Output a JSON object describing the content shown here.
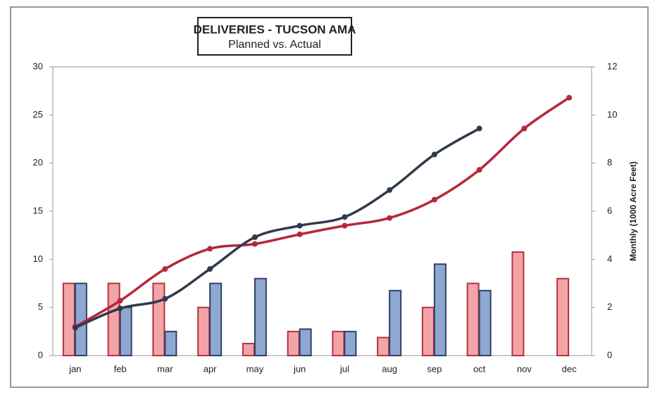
{
  "chart_data": {
    "type": "bar-line",
    "title": "DELIVERIES - TUCSON AMA",
    "subtitle": "Planned vs. Actual",
    "y2label": "Monthly (1000 Acre Feet)",
    "categories": [
      "jan",
      "feb",
      "mar",
      "apr",
      "may",
      "jun",
      "jul",
      "aug",
      "sep",
      "oct",
      "nov",
      "dec"
    ],
    "ylim": [
      0,
      30
    ],
    "yticks": [
      0,
      5,
      10,
      15,
      20,
      25,
      30
    ],
    "y2lim": [
      0,
      12
    ],
    "y2ticks": [
      0,
      2,
      4,
      6,
      8,
      10,
      12
    ],
    "series": [
      {
        "kind": "bar",
        "axis": "y2",
        "color": "#f2a5a8",
        "edge": "#b8303f",
        "values": [
          3,
          3,
          3,
          2,
          0.5,
          1,
          1,
          0.75,
          2,
          3,
          4.3,
          3.2
        ]
      },
      {
        "kind": "bar",
        "axis": "y2",
        "color": "#8fa8d2",
        "edge": "#2f4168",
        "values": [
          3,
          2,
          1,
          3,
          3.2,
          1.1,
          1,
          2.7,
          3.8,
          2.7,
          null,
          null
        ]
      },
      {
        "kind": "line",
        "axis": "y",
        "color": "#b5283a",
        "values": [
          3,
          5.7,
          9,
          11.1,
          11.6,
          12.6,
          13.5,
          14.3,
          16.2,
          19.3,
          23.6,
          26.8
        ]
      },
      {
        "kind": "line",
        "axis": "y",
        "color": "#2f3a4a",
        "values": [
          2.9,
          4.9,
          5.9,
          9,
          12.3,
          13.5,
          14.4,
          17.2,
          20.9,
          23.6,
          null,
          null
        ]
      }
    ]
  }
}
